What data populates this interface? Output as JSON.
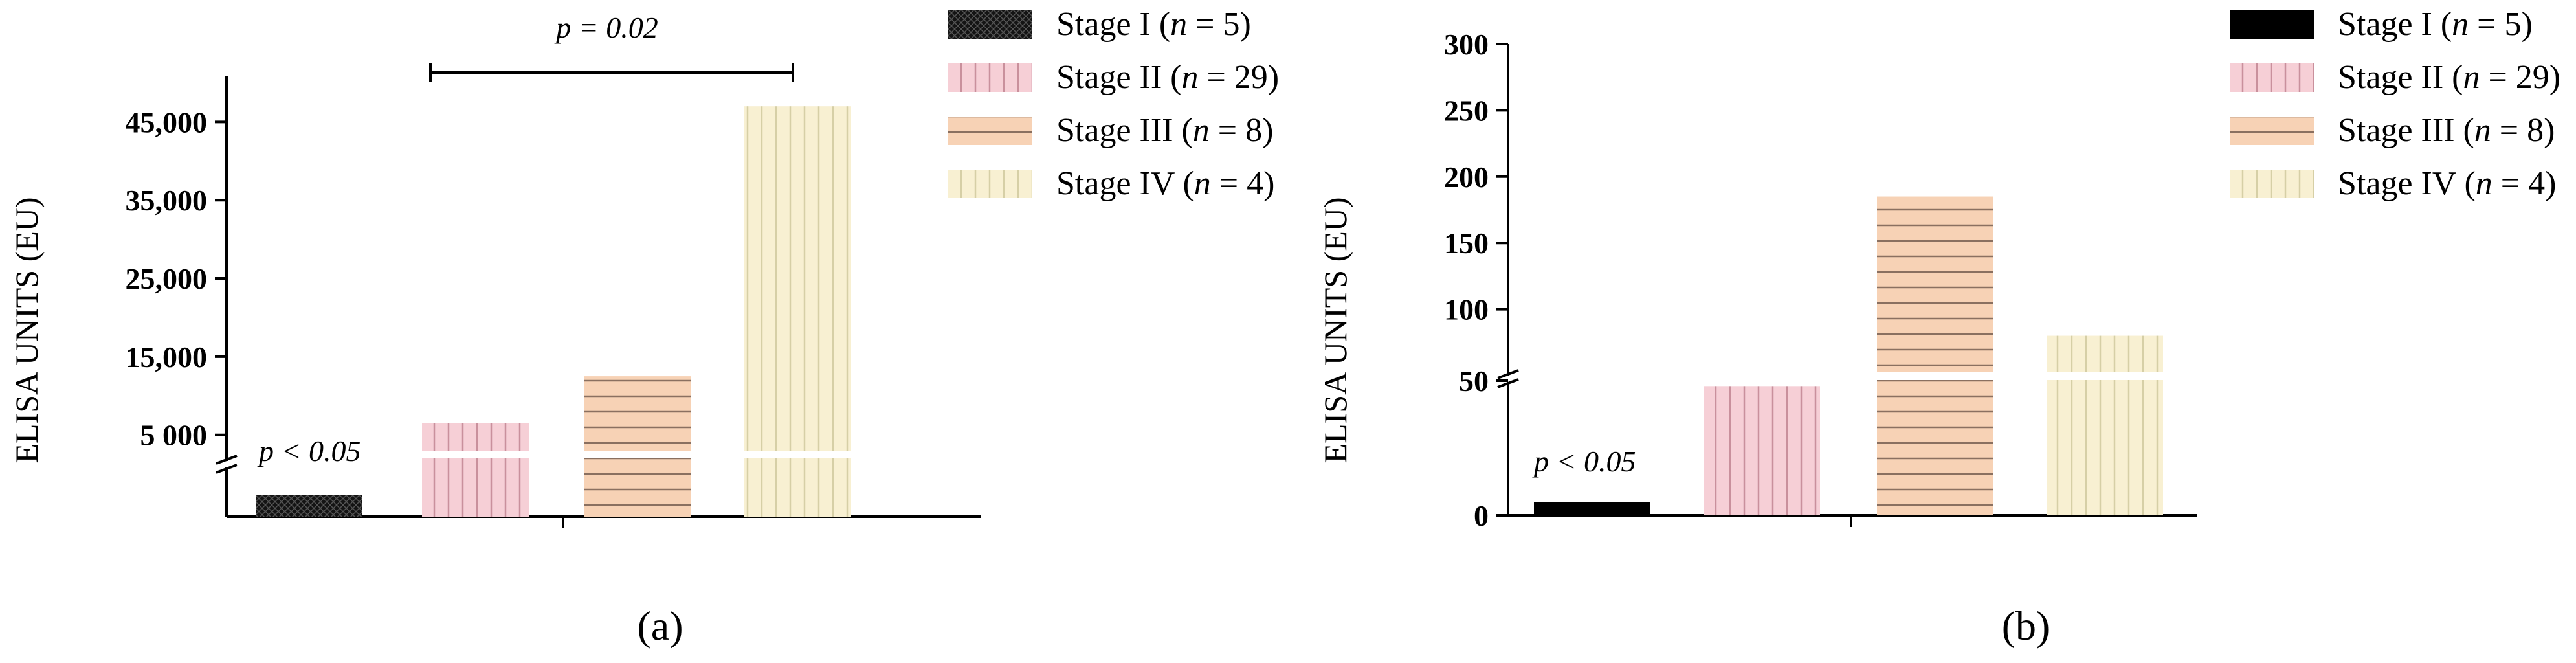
{
  "chart_data": [
    {
      "panel_label": "(a)",
      "type": "bar",
      "ylabel": "ELISA UNITS (EU)",
      "yticks": [
        "5 000",
        "15,000",
        "25,000",
        "35,000",
        "45,000"
      ],
      "y_axis_break": true,
      "series": [
        {
          "name": "Stage I (n = 5)",
          "value": 1800,
          "color": "#111111",
          "pattern": "crosshatch"
        },
        {
          "name": "Stage II (n = 29)",
          "value": 6500,
          "color": "#f6cfd6",
          "pattern": "vertical-lines"
        },
        {
          "name": "Stage III (n = 8)",
          "value": 12500,
          "color": "#f7d2b5",
          "pattern": "horizontal-lines"
        },
        {
          "name": "Stage IV (n = 4)",
          "value": 47000,
          "color": "#f8f0d2",
          "pattern": "vertical-lines"
        }
      ],
      "annotations": {
        "bracket_text": "p = 0.02",
        "bar_text": "p < 0.05"
      },
      "legend": "right"
    },
    {
      "panel_label": "(b)",
      "type": "bar",
      "ylabel": "ELISA UNITS (EU)",
      "yticks": [
        "0",
        "50",
        "100",
        "150",
        "200",
        "250",
        "300"
      ],
      "y_axis_break": true,
      "series": [
        {
          "name": "Stage I (n = 5)",
          "value": 5,
          "color": "#000000",
          "pattern": "solid"
        },
        {
          "name": "Stage II (n = 29)",
          "value": 48,
          "color": "#f6cfd6",
          "pattern": "vertical-lines"
        },
        {
          "name": "Stage III (n = 8)",
          "value": 185,
          "color": "#f7d2b5",
          "pattern": "horizontal-lines"
        },
        {
          "name": "Stage IV (n = 4)",
          "value": 80,
          "color": "#f8f0d2",
          "pattern": "vertical-lines"
        }
      ],
      "annotations": {
        "bar_text": "p < 0.05"
      },
      "legend": "right"
    }
  ]
}
